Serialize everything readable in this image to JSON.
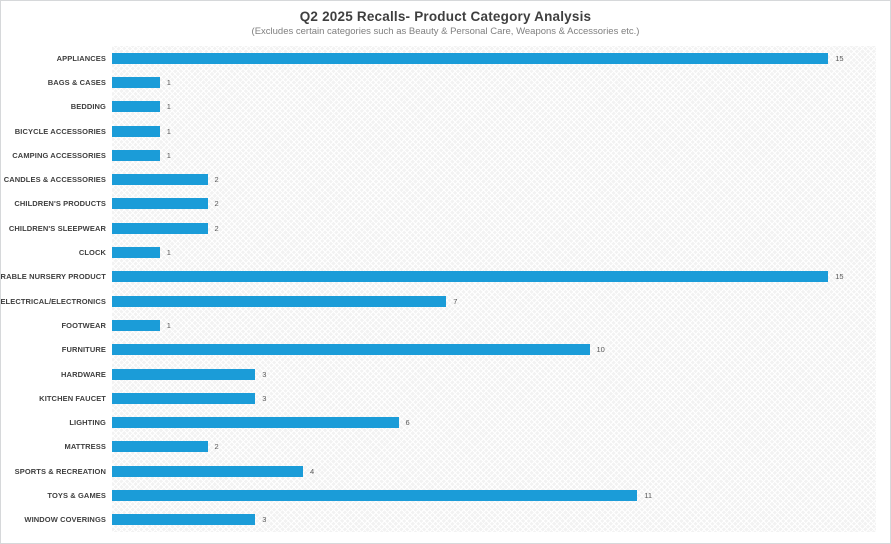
{
  "title": "Q2 2025 Recalls- Product Category Analysis",
  "subtitle": "(Excludes certain categories such as Beauty & Personal Care, Weapons & Accessories etc.)",
  "colors": {
    "bar": "#1b9cd8",
    "title_text": "#3f3f3f",
    "subtitle_text": "#7f7f7f",
    "category_label_text": "#3f3f3f",
    "value_label_text": "#595959",
    "plot_background": "#f2f2f2",
    "canvas_border": "#d6d8da"
  },
  "chart_data": {
    "type": "bar",
    "orientation": "horizontal",
    "title": "Q2 2025 Recalls- Product Category Analysis",
    "subtitle": "(Excludes certain categories such as Beauty & Personal Care, Weapons & Accessories etc.)",
    "xlabel": "",
    "ylabel": "",
    "xlim": [
      0,
      16
    ],
    "grid": false,
    "legend": false,
    "data_labels": true,
    "categories": [
      "APPLIANCES",
      "BAGS & CASES",
      "BEDDING",
      "BICYCLE ACCESSORIES",
      "CAMPING ACCESSORIES",
      "CANDLES & ACCESSORIES",
      "CHILDREN'S PRODUCTS",
      "CHILDREN'S SLEEPWEAR",
      "CLOCK",
      "DURABLE NURSERY PRODUCT",
      "ELECTRICAL/ELECTRONICS",
      "FOOTWEAR",
      "FURNITURE",
      "HARDWARE",
      "KITCHEN FAUCET",
      "LIGHTING",
      "MATTRESS",
      "SPORTS & RECREATION",
      "TOYS & GAMES",
      "WINDOW COVERINGS"
    ],
    "values": [
      15,
      1,
      1,
      1,
      1,
      2,
      2,
      2,
      1,
      15,
      7,
      1,
      10,
      3,
      3,
      6,
      2,
      4,
      11,
      3
    ]
  }
}
